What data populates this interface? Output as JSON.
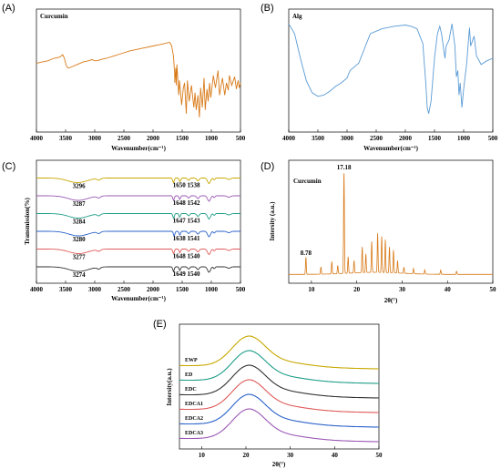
{
  "chart_data": [
    {
      "panel_label": "(A)",
      "type": "line",
      "title": "Curcumin",
      "xlabel": "Wavenumber(cm⁻¹)",
      "ylabel": "",
      "xlim": [
        4000,
        500
      ],
      "x_reversed": true,
      "x_ticks": [
        "4000",
        "3500",
        "3000",
        "2500",
        "2000",
        "1500",
        "1000",
        "500"
      ],
      "color": "#d87a18",
      "series": [
        {
          "x": [
            4000,
            3900,
            3800,
            3700,
            3600,
            3550,
            3520,
            3500,
            3480,
            3450,
            3400,
            3300,
            3200,
            3100,
            3050,
            3000,
            2950,
            2900,
            2800,
            2600,
            2400,
            2200,
            2000,
            1900,
            1800,
            1720,
            1700,
            1680,
            1650,
            1630,
            1626,
            1610,
            1602,
            1590,
            1560,
            1545,
            1510,
            1480,
            1460,
            1430,
            1410,
            1380,
            1340,
            1300,
            1280,
            1260,
            1230,
            1205,
            1185,
            1155,
            1125,
            1105,
            1075,
            1055,
            1030,
            1010,
            965,
            930,
            885,
            860,
            810,
            770,
            740,
            710,
            690,
            650,
            600,
            570,
            540,
            520,
            500
          ],
          "y": [
            56,
            57,
            58,
            60,
            61,
            63,
            60,
            56,
            53,
            52,
            53,
            55,
            57,
            58,
            59,
            58,
            58,
            59,
            60,
            63,
            66,
            68,
            70,
            71,
            72,
            73,
            72,
            70,
            62,
            48,
            40,
            52,
            38,
            55,
            30,
            42,
            22,
            36,
            40,
            15,
            42,
            25,
            38,
            20,
            32,
            18,
            30,
            12,
            36,
            20,
            44,
            18,
            35,
            25,
            40,
            28,
            46,
            36,
            50,
            30,
            44,
            30,
            40,
            34,
            46,
            38,
            45,
            35,
            42,
            36,
            40
          ]
        }
      ]
    },
    {
      "panel_label": "(B)",
      "type": "line",
      "title": "Alg",
      "xlabel": "Wavenumber(cm⁻¹)",
      "ylabel": "",
      "xlim": [
        4000,
        500
      ],
      "x_reversed": true,
      "x_ticks": [
        "4000",
        "3500",
        "3000",
        "2500",
        "2000",
        "1500",
        "1000",
        "500"
      ],
      "color": "#5b9bd5",
      "series": [
        {
          "x": [
            4000,
            3900,
            3800,
            3700,
            3600,
            3500,
            3400,
            3300,
            3200,
            3100,
            3000,
            2950,
            2900,
            2800,
            2600,
            2400,
            2200,
            2000,
            1900,
            1800,
            1700,
            1650,
            1625,
            1600,
            1560,
            1500,
            1450,
            1410,
            1380,
            1320,
            1300,
            1250,
            1200,
            1150,
            1125,
            1100,
            1080,
            1060,
            1030,
            1000,
            950,
            900,
            880,
            820,
            780,
            700,
            600,
            500
          ],
          "y": [
            88,
            80,
            60,
            42,
            32,
            29,
            30,
            33,
            37,
            40,
            44,
            50,
            52,
            56,
            80,
            84,
            86,
            87,
            86,
            84,
            72,
            40,
            20,
            15,
            25,
            60,
            80,
            86,
            80,
            60,
            70,
            75,
            88,
            70,
            45,
            50,
            30,
            40,
            20,
            35,
            55,
            85,
            70,
            78,
            62,
            55,
            58,
            60
          ]
        }
      ]
    },
    {
      "panel_label": "(C)",
      "type": "line",
      "title": "",
      "xlabel": "Wavenumber(cm⁻¹)",
      "ylabel": "Transmission(%)",
      "xlim": [
        4000,
        500
      ],
      "x_reversed": true,
      "x_ticks": [
        "4000",
        "3500",
        "3000",
        "2500",
        "2000",
        "1500",
        "1000",
        "500"
      ],
      "series": [
        {
          "color": "#c7a800",
          "offset": 5,
          "peaks": [
            3296,
            1650,
            1538
          ],
          "annotation": "1650 1538"
        },
        {
          "color": "#9b59b6",
          "offset": 4,
          "peaks": [
            3287,
            1648,
            1542
          ],
          "annotation": "1648  1542"
        },
        {
          "color": "#1f9e89",
          "offset": 3,
          "peaks": [
            3284,
            1647,
            1543
          ],
          "annotation": "1647  1543"
        },
        {
          "color": "#2a62c9",
          "offset": 2,
          "peaks": [
            3280,
            1638,
            1541
          ],
          "annotation": "1638   1541"
        },
        {
          "color": "#e05a5a",
          "offset": 1,
          "peaks": [
            3277,
            1648,
            1540
          ],
          "annotation": "1648   1540"
        },
        {
          "color": "#333333",
          "offset": 0,
          "peaks": [
            3274,
            1649,
            1540
          ],
          "annotation": "1649   1540"
        }
      ],
      "peak_labels": [
        "3296",
        "3287",
        "3284",
        "3280",
        "3277",
        "3274"
      ]
    },
    {
      "panel_label": "(D)",
      "type": "line",
      "title": "Curcumin",
      "xlabel": "2θ(°)",
      "ylabel": "Intersity (a.u.)",
      "xlim": [
        5,
        50
      ],
      "x_ticks": [
        "10",
        "20",
        "30",
        "40",
        "50"
      ],
      "color": "#d87a18",
      "annotations": [
        {
          "x": 8.78,
          "label": "8.78"
        },
        {
          "x": 17.18,
          "label": "17.18"
        }
      ],
      "peaks": [
        {
          "x": 8.78,
          "h": 0.17
        },
        {
          "x": 12.1,
          "h": 0.07
        },
        {
          "x": 14.5,
          "h": 0.12
        },
        {
          "x": 15.8,
          "h": 0.08
        },
        {
          "x": 17.18,
          "h": 1.0
        },
        {
          "x": 18.1,
          "h": 0.16
        },
        {
          "x": 19.4,
          "h": 0.12
        },
        {
          "x": 21.2,
          "h": 0.25
        },
        {
          "x": 22.0,
          "h": 0.18
        },
        {
          "x": 23.3,
          "h": 0.3
        },
        {
          "x": 24.6,
          "h": 0.38
        },
        {
          "x": 25.5,
          "h": 0.35
        },
        {
          "x": 26.3,
          "h": 0.32
        },
        {
          "x": 27.2,
          "h": 0.25
        },
        {
          "x": 28.1,
          "h": 0.22
        },
        {
          "x": 29.0,
          "h": 0.12
        },
        {
          "x": 30.4,
          "h": 0.06
        },
        {
          "x": 32.5,
          "h": 0.05
        },
        {
          "x": 35.0,
          "h": 0.04
        },
        {
          "x": 38.5,
          "h": 0.04
        },
        {
          "x": 42.0,
          "h": 0.03
        }
      ]
    },
    {
      "panel_label": "(E)",
      "type": "line",
      "title": "",
      "xlabel": "2θ(°)",
      "ylabel": "Intersity(a.u.)",
      "xlim": [
        5,
        50
      ],
      "x_ticks": [
        "10",
        "20",
        "30",
        "40",
        "50"
      ],
      "series": [
        {
          "name": "EWP",
          "color": "#c7a800",
          "offset": 5
        },
        {
          "name": "ED",
          "color": "#1f9e89",
          "offset": 4
        },
        {
          "name": "EDC",
          "color": "#333333",
          "offset": 3
        },
        {
          "name": "EDCA1",
          "color": "#e05a5a",
          "offset": 2
        },
        {
          "name": "EDCA2",
          "color": "#2a62c9",
          "offset": 1
        },
        {
          "name": "EDCA3",
          "color": "#9b59b6",
          "offset": 0
        }
      ]
    }
  ]
}
